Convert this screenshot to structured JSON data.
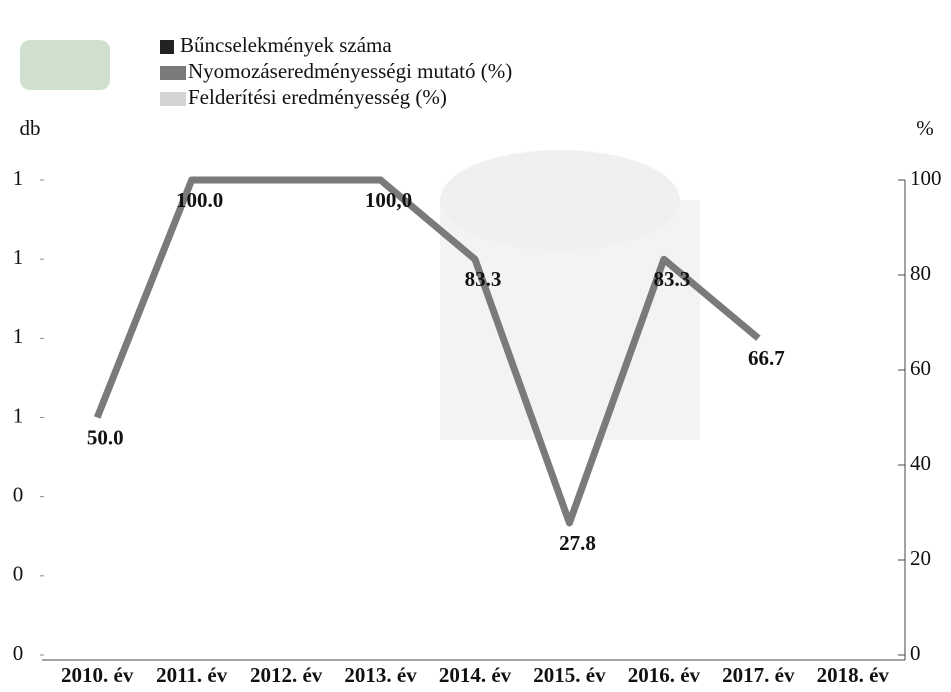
{
  "chart_data": {
    "type": "line",
    "y_label": "db",
    "y2_label": "%",
    "legend": [
      {
        "name": "Bűncselekmények száma",
        "color": "#222222"
      },
      {
        "name": "Nyomozáseredményességi mutató (%)",
        "color": "#7a7a7a"
      },
      {
        "name": "Felderítési eredményesség (%)",
        "color": "#d4d4d4"
      }
    ],
    "categories": [
      "2010. év",
      "2011. év",
      "2012. év",
      "2013. év",
      "2014. év",
      "2015. év",
      "2016. év",
      "2017. év",
      "2018. év"
    ],
    "series": [
      {
        "name": "Nyomozáseredményességi mutató (%)",
        "color": "#7a7a7a",
        "axis": "y2",
        "values": [
          50,
          100,
          100,
          100,
          83.3,
          27.8,
          83.3,
          66.7,
          null
        ],
        "value_labels": [
          "50.0",
          "100.0",
          null,
          "100,0",
          "83.3",
          "27.8",
          "83.3",
          "66.7",
          null
        ]
      }
    ],
    "ylim": [
      0,
      1.2
    ],
    "yticks": [
      {
        "value": 0,
        "label": "0"
      },
      {
        "value": 0.2,
        "label": "0"
      },
      {
        "value": 0.4,
        "label": "0"
      },
      {
        "value": 0.6,
        "label": "1"
      },
      {
        "value": 0.8,
        "label": "1"
      },
      {
        "value": 1.0,
        "label": "1"
      },
      {
        "value": 1.2,
        "label": "1"
      }
    ],
    "y2lim": [
      0,
      100
    ],
    "y2ticks": [
      0,
      20,
      40,
      60,
      80,
      100
    ]
  }
}
